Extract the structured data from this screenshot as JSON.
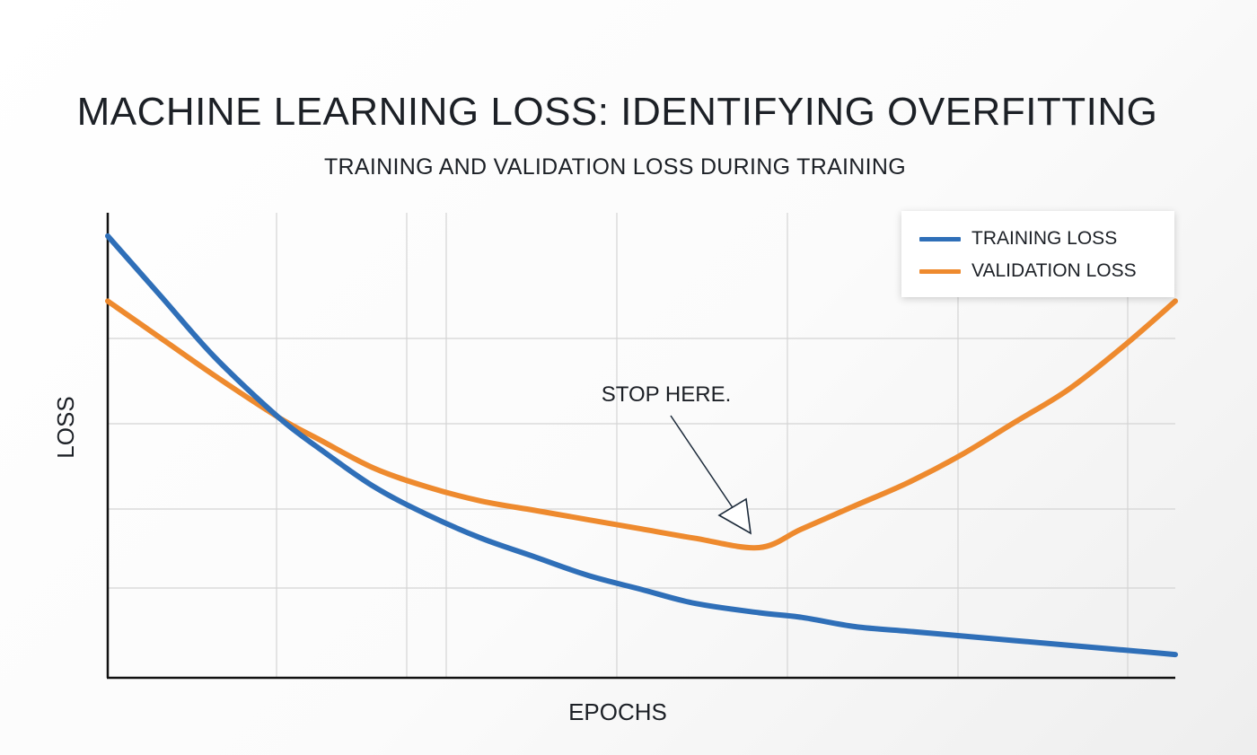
{
  "chart_data": {
    "type": "line",
    "title": "MACHINE LEARNING LOSS: IDENTIFYING OVERFITTING",
    "subtitle": "TRAINING AND VALIDATION LOSS DURING TRAINING",
    "xlabel": "EPOCHS",
    "ylabel": "LOSS",
    "xlim": [
      0,
      100
    ],
    "ylim": [
      0,
      100
    ],
    "grid": true,
    "x_ticks_shown": false,
    "y_ticks_shown": false,
    "legend_placement": "top-right",
    "series": [
      {
        "name": "TRAINING LOSS",
        "color": "#2f6fb8",
        "x": [
          0,
          5,
          10,
          16,
          20,
          25,
          30,
          35,
          40,
          45,
          50,
          55,
          61,
          65,
          70,
          75,
          80,
          85,
          90,
          95,
          100
        ],
        "y": [
          95,
          82,
          69,
          56,
          49,
          41,
          35,
          30,
          26,
          22,
          19,
          16,
          14,
          13,
          11,
          10,
          9,
          8,
          7,
          6,
          5
        ]
      },
      {
        "name": "VALIDATION LOSS",
        "color": "#ee8a2e",
        "x": [
          0,
          5,
          10,
          16,
          20,
          25,
          30,
          35,
          40,
          45,
          50,
          55,
          61,
          65,
          70,
          75,
          80,
          85,
          90,
          95,
          100
        ],
        "y": [
          81,
          73,
          65,
          56,
          51,
          45,
          41,
          38,
          36,
          34,
          32,
          30,
          28,
          32,
          37,
          42,
          48,
          55,
          62,
          71,
          81
        ]
      }
    ],
    "annotations": [
      {
        "text": "STOP HERE.",
        "x": 61,
        "y": 28
      }
    ]
  }
}
